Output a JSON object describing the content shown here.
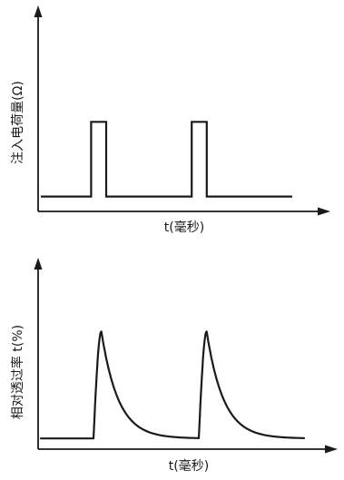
{
  "chart_data": [
    {
      "type": "line",
      "title": "",
      "xlabel": "t(毫秒)",
      "ylabel": "注入电荷量(Ω)",
      "grid": false,
      "legend": "none",
      "ticks_labeled": false,
      "series": [
        {
          "shape": "rectangular-pulse",
          "pulses": [
            {
              "start": 1.0,
              "end": 1.3
            },
            {
              "start": 3.0,
              "end": 3.3
            }
          ],
          "baseline": 0,
          "peak": 1
        }
      ],
      "xlim": [
        0,
        5
      ],
      "ylim": [
        -0.2,
        1.6
      ]
    },
    {
      "type": "line",
      "title": "",
      "xlabel": "t(毫秒)",
      "ylabel": "相对透过率 t(%)",
      "grid": false,
      "legend": "none",
      "ticks_labeled": false,
      "series": [
        {
          "shape": "sharp-rise-exponential-decay",
          "pulses": [
            {
              "start": 1.0,
              "peak_time": 1.15
            },
            {
              "start": 3.0,
              "peak_time": 3.15
            }
          ],
          "baseline": 0,
          "peak": 1
        }
      ],
      "xlim": [
        0,
        5
      ],
      "ylim": [
        -0.1,
        1.3
      ]
    }
  ]
}
